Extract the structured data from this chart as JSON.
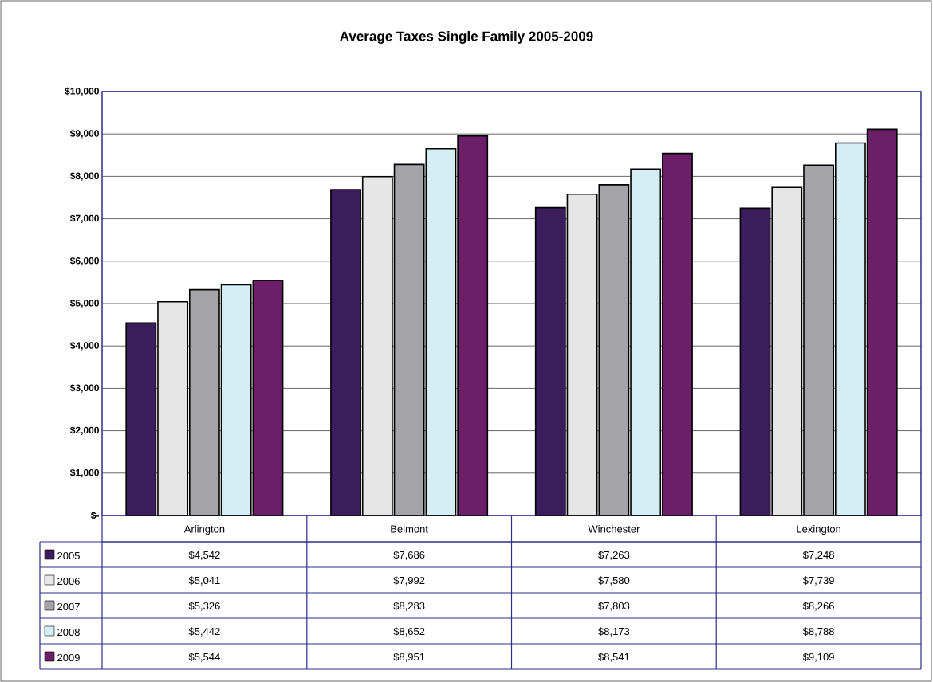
{
  "chart_data": {
    "type": "bar",
    "title": "Average Taxes Single Family 2005-2009",
    "categories": [
      "Arlington",
      "Belmont",
      "Winchester",
      "Lexington"
    ],
    "series": [
      {
        "name": "2005",
        "color": "#3b1d5e",
        "values": [
          4542,
          7686,
          7263,
          7248
        ],
        "value_labels": [
          "$4,542",
          "$7,686",
          "$7,263",
          "$7,248"
        ]
      },
      {
        "name": "2006",
        "color": "#e6e6e6",
        "values": [
          5041,
          7992,
          7580,
          7739
        ],
        "value_labels": [
          "$5,041",
          "$7,992",
          "$7,580",
          "$7,739"
        ]
      },
      {
        "name": "2007",
        "color": "#a3a3a8",
        "values": [
          5326,
          8283,
          7803,
          8266
        ],
        "value_labels": [
          "$5,326",
          "$8,283",
          "$7,803",
          "$8,266"
        ]
      },
      {
        "name": "2008",
        "color": "#d5eef4",
        "values": [
          5442,
          8652,
          8173,
          8788
        ],
        "value_labels": [
          "$5,442",
          "$8,652",
          "$8,173",
          "$8,788"
        ]
      },
      {
        "name": "2009",
        "color": "#6b1f68",
        "values": [
          5544,
          8951,
          8541,
          9109
        ],
        "value_labels": [
          "$5,544",
          "$8,951",
          "$8,541",
          "$9,109"
        ]
      }
    ],
    "ylim": [
      0,
      10000
    ],
    "yticks": [
      {
        "value": 0,
        "label": "$-"
      },
      {
        "value": 1000,
        "label": "$1,000"
      },
      {
        "value": 2000,
        "label": "$2,000"
      },
      {
        "value": 3000,
        "label": "$3,000"
      },
      {
        "value": 4000,
        "label": "$4,000"
      },
      {
        "value": 5000,
        "label": "$5,000"
      },
      {
        "value": 6000,
        "label": "$6,000"
      },
      {
        "value": 7000,
        "label": "$7,000"
      },
      {
        "value": 8000,
        "label": "$8,000"
      },
      {
        "value": 9000,
        "label": "$9,000"
      },
      {
        "value": 10000,
        "label": "$10,000"
      }
    ],
    "grid": "y",
    "legend": "bottom left",
    "tick_labels": "y"
  }
}
